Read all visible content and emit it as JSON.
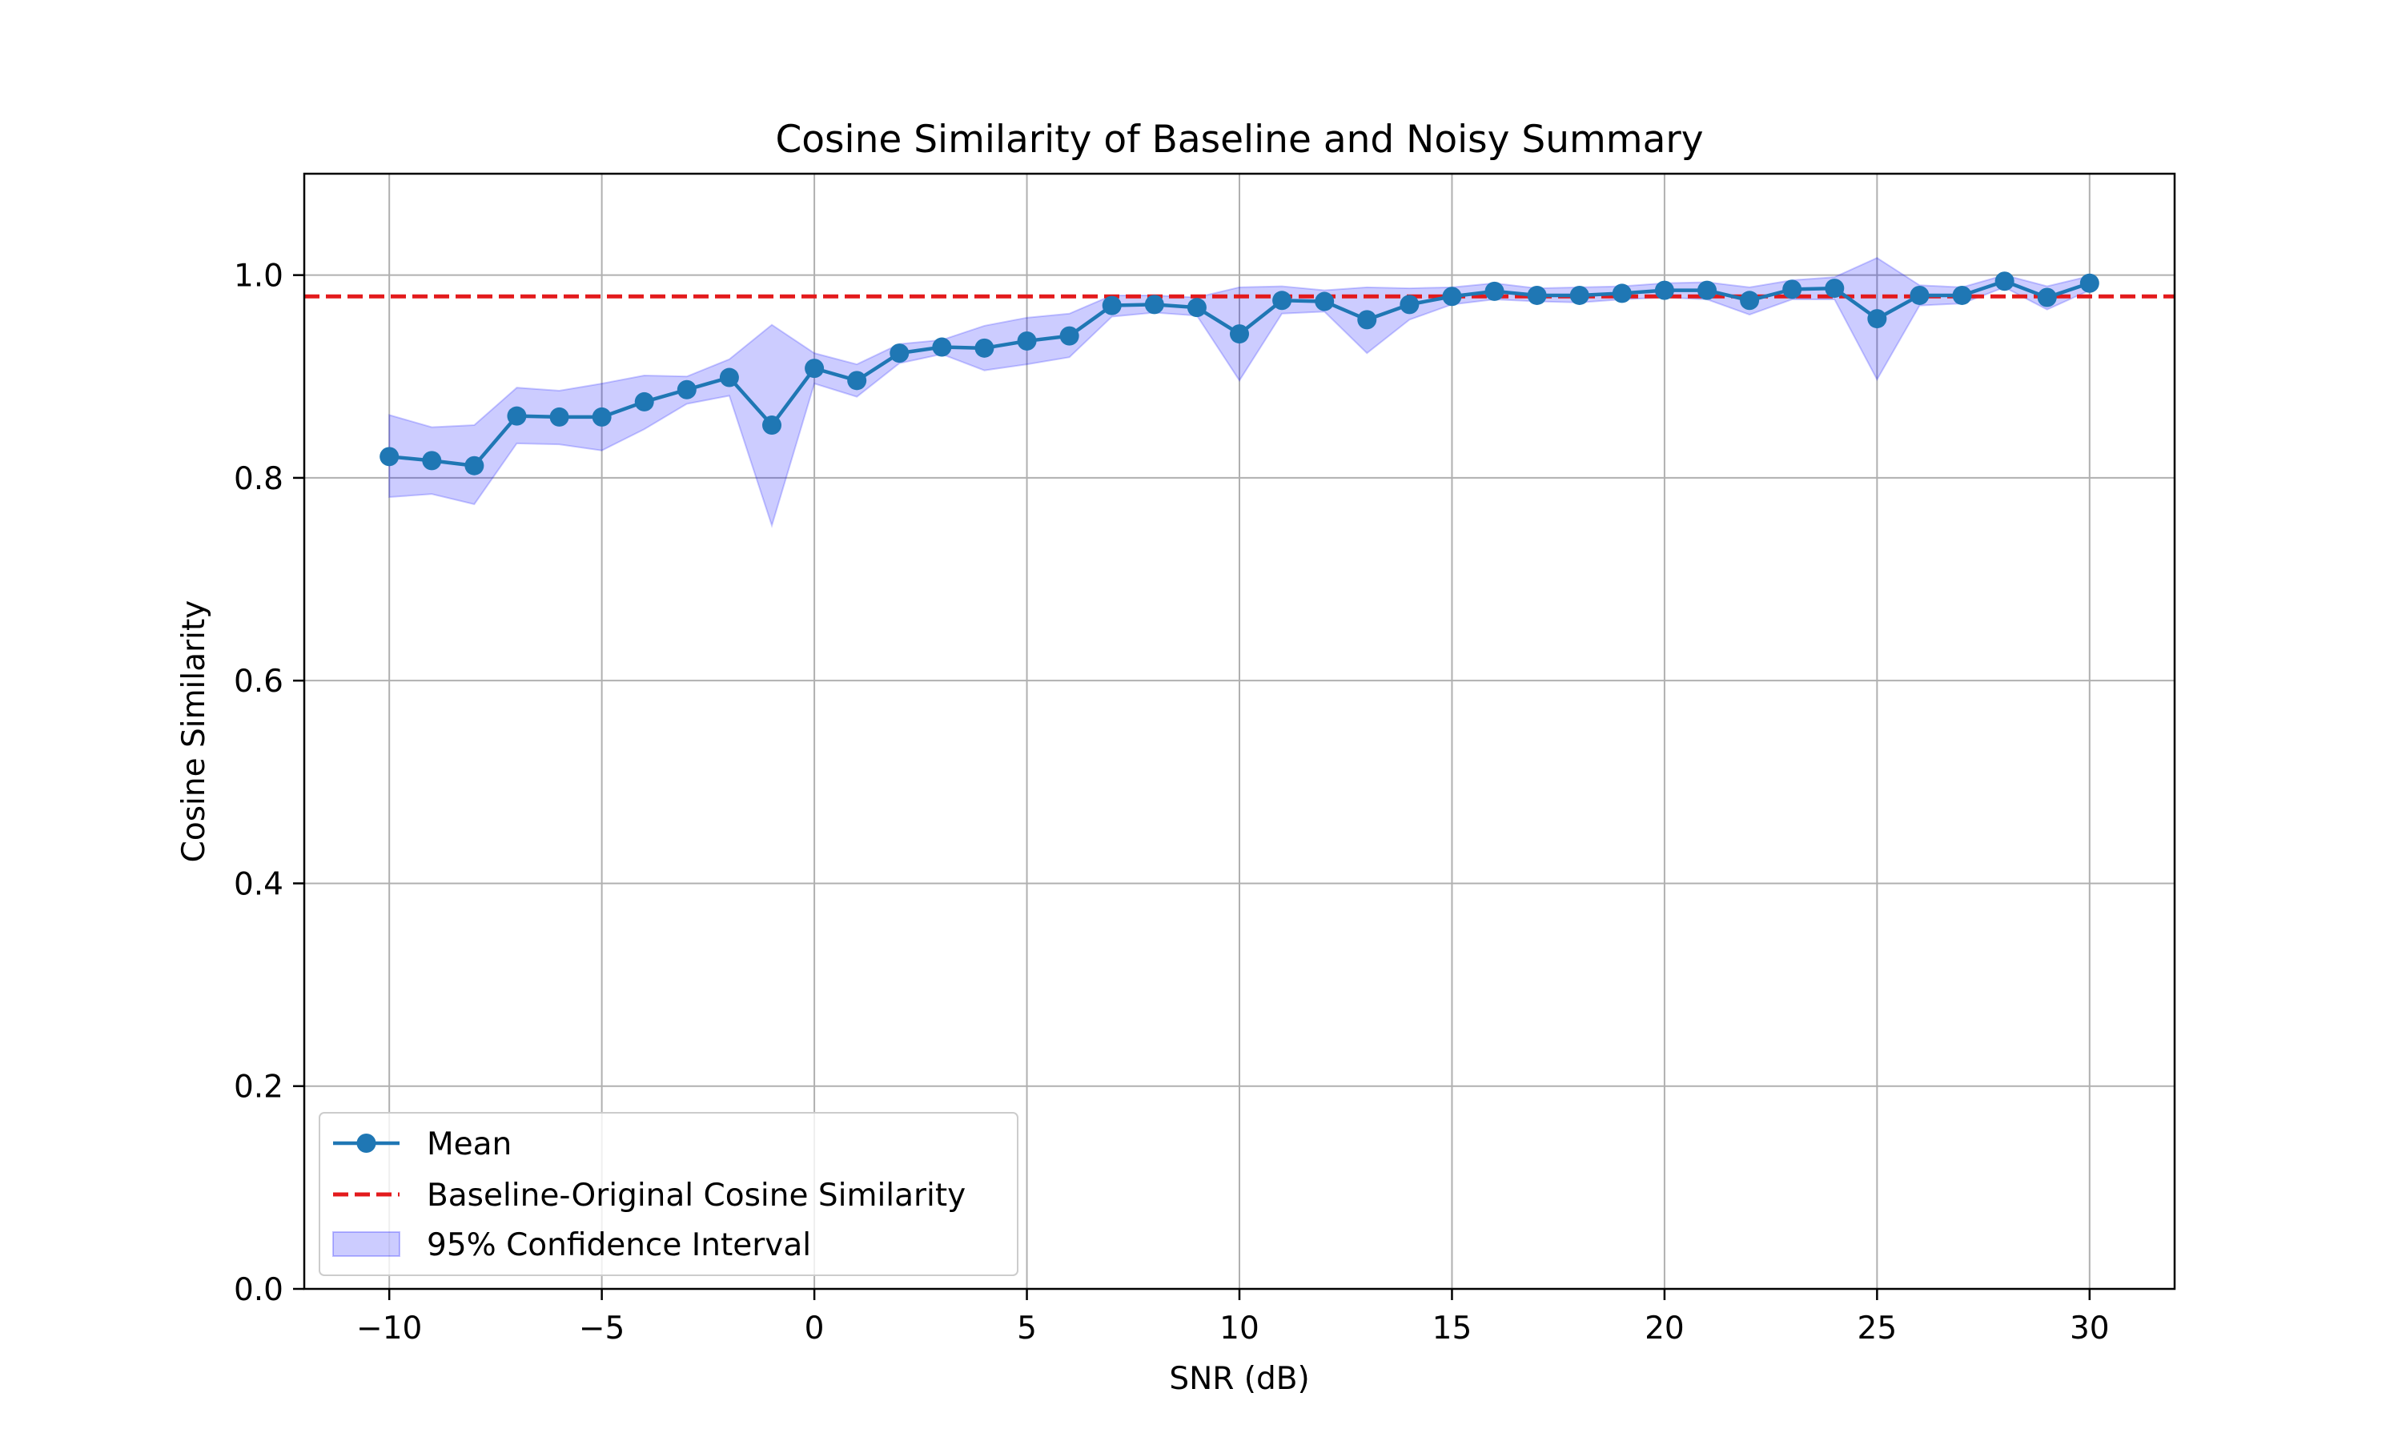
{
  "chart_data": {
    "type": "line",
    "title": "Cosine Similarity of Baseline and Noisy Summary",
    "xlabel": "SNR (dB)",
    "ylabel": "Cosine Similarity",
    "xlim": [
      -12,
      32
    ],
    "ylim": [
      0.0,
      1.1
    ],
    "x_ticks": [
      -10,
      -5,
      0,
      5,
      10,
      15,
      20,
      25,
      30
    ],
    "x_tick_labels": [
      "−10",
      "−5",
      "0",
      "5",
      "10",
      "15",
      "20",
      "25",
      "30"
    ],
    "y_ticks": [
      0.0,
      0.2,
      0.4,
      0.6,
      0.8,
      1.0
    ],
    "y_tick_labels": [
      "0.0",
      "0.2",
      "0.4",
      "0.6",
      "0.8",
      "1.0"
    ],
    "grid": true,
    "legend_position": "lower-left",
    "x": [
      -10,
      -9,
      -8,
      -7,
      -6,
      -5,
      -4,
      -3,
      -2,
      -1,
      0,
      1,
      2,
      3,
      4,
      5,
      6,
      7,
      8,
      9,
      10,
      11,
      12,
      13,
      14,
      15,
      16,
      17,
      18,
      19,
      20,
      21,
      22,
      23,
      24,
      25,
      26,
      27,
      28,
      29,
      30
    ],
    "series": [
      {
        "name": "Mean",
        "kind": "line-marker",
        "color": "#1f77b4",
        "values": [
          0.821,
          0.817,
          0.812,
          0.861,
          0.86,
          0.86,
          0.875,
          0.887,
          0.899,
          0.852,
          0.908,
          0.896,
          0.923,
          0.929,
          0.928,
          0.935,
          0.94,
          0.97,
          0.971,
          0.968,
          0.942,
          0.975,
          0.974,
          0.956,
          0.971,
          0.979,
          0.984,
          0.98,
          0.98,
          0.982,
          0.985,
          0.985,
          0.975,
          0.986,
          0.987,
          0.957,
          0.98,
          0.98,
          0.994,
          0.978,
          0.992
        ]
      },
      {
        "name": "Baseline-Original Cosine Similarity",
        "kind": "hline",
        "color": "#e31a1c",
        "value": 0.979
      },
      {
        "name": "95% Confidence Interval",
        "kind": "band",
        "color": "#0000ff",
        "lower": [
          0.781,
          0.784,
          0.774,
          0.834,
          0.833,
          0.827,
          0.848,
          0.873,
          0.881,
          0.753,
          0.893,
          0.88,
          0.913,
          0.922,
          0.906,
          0.912,
          0.919,
          0.959,
          0.963,
          0.96,
          0.896,
          0.962,
          0.964,
          0.923,
          0.956,
          0.971,
          0.976,
          0.974,
          0.973,
          0.976,
          0.978,
          0.976,
          0.961,
          0.976,
          0.976,
          0.897,
          0.97,
          0.972,
          0.988,
          0.966,
          0.985
        ],
        "upper": [
          0.862,
          0.85,
          0.852,
          0.889,
          0.886,
          0.893,
          0.901,
          0.9,
          0.917,
          0.951,
          0.923,
          0.912,
          0.932,
          0.936,
          0.95,
          0.958,
          0.962,
          0.98,
          0.98,
          0.978,
          0.988,
          0.989,
          0.985,
          0.988,
          0.987,
          0.988,
          0.992,
          0.987,
          0.988,
          0.989,
          0.992,
          0.993,
          0.988,
          0.995,
          0.998,
          1.017,
          0.99,
          0.988,
          1.0,
          0.989,
          0.999
        ]
      }
    ]
  }
}
